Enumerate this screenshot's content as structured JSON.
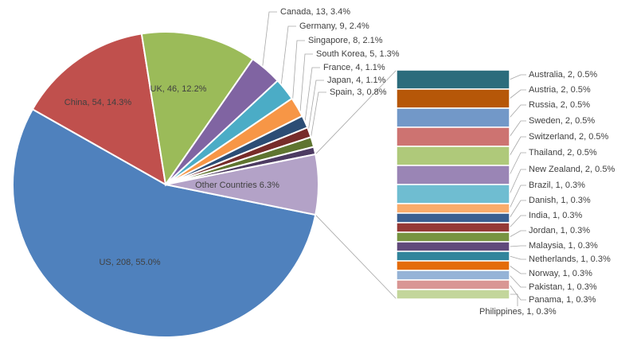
{
  "chart_data": {
    "type": "pie",
    "subtype": "bar-of-pie",
    "main_slices": [
      {
        "name": "US",
        "value": 208,
        "percent": "55.0%",
        "label": "US, 208, 55.0%",
        "color": "#4f81bd"
      },
      {
        "name": "China",
        "value": 54,
        "percent": "14.3%",
        "label": "China, 54, 14.3%",
        "color": "#c0504d"
      },
      {
        "name": "UK",
        "value": 46,
        "percent": "12.2%",
        "label": "UK, 46, 12.2%",
        "color": "#9bbb59"
      },
      {
        "name": "Canada",
        "value": 13,
        "percent": "3.4%",
        "label": "Canada, 13, 3.4%",
        "color": "#8064a2"
      },
      {
        "name": "Germany",
        "value": 9,
        "percent": "2.4%",
        "label": "Germany, 9, 2.4%",
        "color": "#4bacc6"
      },
      {
        "name": "Singapore",
        "value": 8,
        "percent": "2.1%",
        "label": "Singapore, 8, 2.1%",
        "color": "#f79646"
      },
      {
        "name": "South Korea",
        "value": 5,
        "percent": "1.3%",
        "label": "South Korea, 5, 1.3%",
        "color": "#2c4d75"
      },
      {
        "name": "France",
        "value": 4,
        "percent": "1.1%",
        "label": "France, 4, 1.1%",
        "color": "#772c2a"
      },
      {
        "name": "Japan",
        "value": 4,
        "percent": "1.1%",
        "label": "Japan, 4, 1.1%",
        "color": "#5f7530"
      },
      {
        "name": "Spain",
        "value": 3,
        "percent": "0.8%",
        "label": "Spain, 3, 0.8%",
        "color": "#4d3b62"
      },
      {
        "name": "Other Countries",
        "value": 24,
        "percent": "6.3%",
        "label": "Other Countries 6.3%",
        "color": "#b3a2c7"
      }
    ],
    "other_breakdown": [
      {
        "name": "Australia",
        "value": 2,
        "percent": "0.5%",
        "label": "Australia, 2, 0.5%",
        "color": "#2c6c7c"
      },
      {
        "name": "Austria",
        "value": 2,
        "percent": "0.5%",
        "label": "Austria, 2, 0.5%",
        "color": "#b65708"
      },
      {
        "name": "Russia",
        "value": 2,
        "percent": "0.5%",
        "label": "Russia, 2, 0.5%",
        "color": "#7298c8"
      },
      {
        "name": "Sweden",
        "value": 2,
        "percent": "0.5%",
        "label": "Sweden, 2, 0.5%",
        "color": "#cd7371"
      },
      {
        "name": "Switzerland",
        "value": 2,
        "percent": "0.5%",
        "label": "Switzerland, 2, 0.5%",
        "color": "#afc97a"
      },
      {
        "name": "Thailand",
        "value": 2,
        "percent": "0.5%",
        "label": "Thailand, 2, 0.5%",
        "color": "#9a85b5"
      },
      {
        "name": "New Zealand",
        "value": 2,
        "percent": "0.5%",
        "label": "New Zealand, 2, 0.5%",
        "color": "#6fbdd1"
      },
      {
        "name": "Brazil",
        "value": 1,
        "percent": "0.3%",
        "label": "Brazil, 1, 0.3%",
        "color": "#f9ab6b"
      },
      {
        "name": "Danish",
        "value": 1,
        "percent": "0.3%",
        "label": "Danish, 1, 0.3%",
        "color": "#3a5f91"
      },
      {
        "name": "India",
        "value": 1,
        "percent": "0.3%",
        "label": "India, 1, 0.3%",
        "color": "#953936"
      },
      {
        "name": "Jordan",
        "value": 1,
        "percent": "0.3%",
        "label": "Jordan, 1, 0.3%",
        "color": "#779441"
      },
      {
        "name": "Malaysia",
        "value": 1,
        "percent": "0.3%",
        "label": "Malaysia, 1, 0.3%",
        "color": "#604a7b"
      },
      {
        "name": "Netherlands",
        "value": 1,
        "percent": "0.3%",
        "label": "Netherlands, 1, 0.3%",
        "color": "#31859c"
      },
      {
        "name": "Norway",
        "value": 1,
        "percent": "0.3%",
        "label": "Norway, 1, 0.3%",
        "color": "#e46c0a"
      },
      {
        "name": "Pakistan",
        "value": 1,
        "percent": "0.3%",
        "label": "Pakistan, 1, 0.3%",
        "color": "#95b3d7"
      },
      {
        "name": "Panama",
        "value": 1,
        "percent": "0.3%",
        "label": "Panama, 1, 0.3%",
        "color": "#d99694"
      },
      {
        "name": "Philippines",
        "value": 1,
        "percent": "0.3%",
        "label": "Philippines, 1, 0.3%",
        "color": "#c3d69b"
      }
    ],
    "title": "",
    "legend": "none",
    "grid": false
  }
}
